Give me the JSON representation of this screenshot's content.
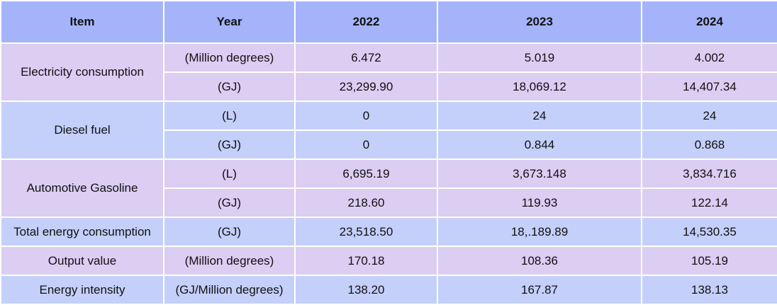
{
  "header": {
    "item": "Item",
    "year": "Year",
    "years": [
      "2022",
      "2023",
      "2024"
    ]
  },
  "rows": [
    {
      "item": "Electricity consumption",
      "unit": "(Million degrees)",
      "values": [
        "6.472",
        "5.019",
        "4.002"
      ]
    },
    {
      "item": "",
      "unit": "(GJ)",
      "values": [
        "23,299.90",
        "18,069.12",
        "14,407.34"
      ]
    },
    {
      "item": "Diesel fuel",
      "unit": "(L)",
      "values": [
        "0",
        "24",
        "24"
      ]
    },
    {
      "item": "",
      "unit": "(GJ)",
      "values": [
        "0",
        "0.844",
        "0.868"
      ]
    },
    {
      "item": "Automotive Gasoline",
      "unit": "(L)",
      "values": [
        "6,695.19",
        "3,673.148",
        "3,834.716"
      ]
    },
    {
      "item": "",
      "unit": "(GJ)",
      "values": [
        "218.60",
        "119.93",
        "122.14"
      ]
    },
    {
      "item": "Total energy consumption",
      "unit": "(GJ)",
      "values": [
        "23,518.50",
        "18,.189.89",
        "14,530.35"
      ]
    },
    {
      "item": "Output value",
      "unit": "(Million degrees)",
      "values": [
        "170.18",
        "108.36",
        "105.19"
      ]
    },
    {
      "item": "Energy intensity",
      "unit": "(GJ/Million degrees)",
      "values": [
        "138.20",
        "167.87",
        "138.13"
      ]
    }
  ],
  "colors": {
    "header_bg": "#a5b4fa",
    "purple_row": "#dccdf3",
    "blue_row": "#c4cffa",
    "border": "#ffffff"
  }
}
